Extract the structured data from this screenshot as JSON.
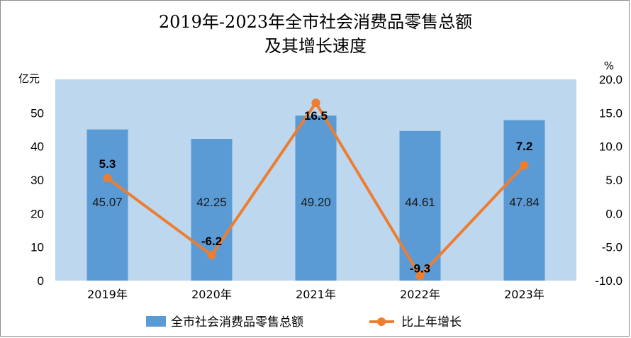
{
  "title_line1": "2019年-2023年全市社会消费品零售总额",
  "title_line2": "及其增长速度",
  "chart_data": {
    "type": "bar+line",
    "categories": [
      "2019年",
      "2020年",
      "2021年",
      "2022年",
      "2023年"
    ],
    "series": [
      {
        "name": "全市社会消费品零售总额",
        "type": "bar",
        "axis": "left",
        "values": [
          45.07,
          42.25,
          49.2,
          44.61,
          47.84
        ],
        "labels": [
          "45.07",
          "42.25",
          "49.20",
          "44.61",
          "47.84"
        ],
        "color": "#5b9bd5"
      },
      {
        "name": "比上年增长",
        "type": "line",
        "axis": "right",
        "values": [
          5.3,
          -6.2,
          16.5,
          -9.3,
          7.2
        ],
        "labels": [
          "5.3",
          "-6.2",
          "16.5",
          "-9.3",
          "7.2"
        ],
        "color": "#ed7d31"
      }
    ],
    "left_axis": {
      "unit": "亿元",
      "ylim": [
        0,
        60
      ],
      "ticks": [
        0,
        10,
        20,
        30,
        40,
        50
      ],
      "tick_labels": [
        "0",
        "10",
        "20",
        "30",
        "40",
        "50"
      ]
    },
    "right_axis": {
      "unit": "%",
      "ylim": [
        -10,
        20
      ],
      "ticks": [
        -10,
        -5,
        0,
        5,
        10,
        15,
        20
      ],
      "tick_labels": [
        "-10.0",
        "-5.0",
        "0.0",
        "5.0",
        "10.0",
        "15.0",
        "20.0"
      ]
    },
    "plot_background": "#bdd7ee",
    "legend_position": "bottom",
    "grid": false
  }
}
